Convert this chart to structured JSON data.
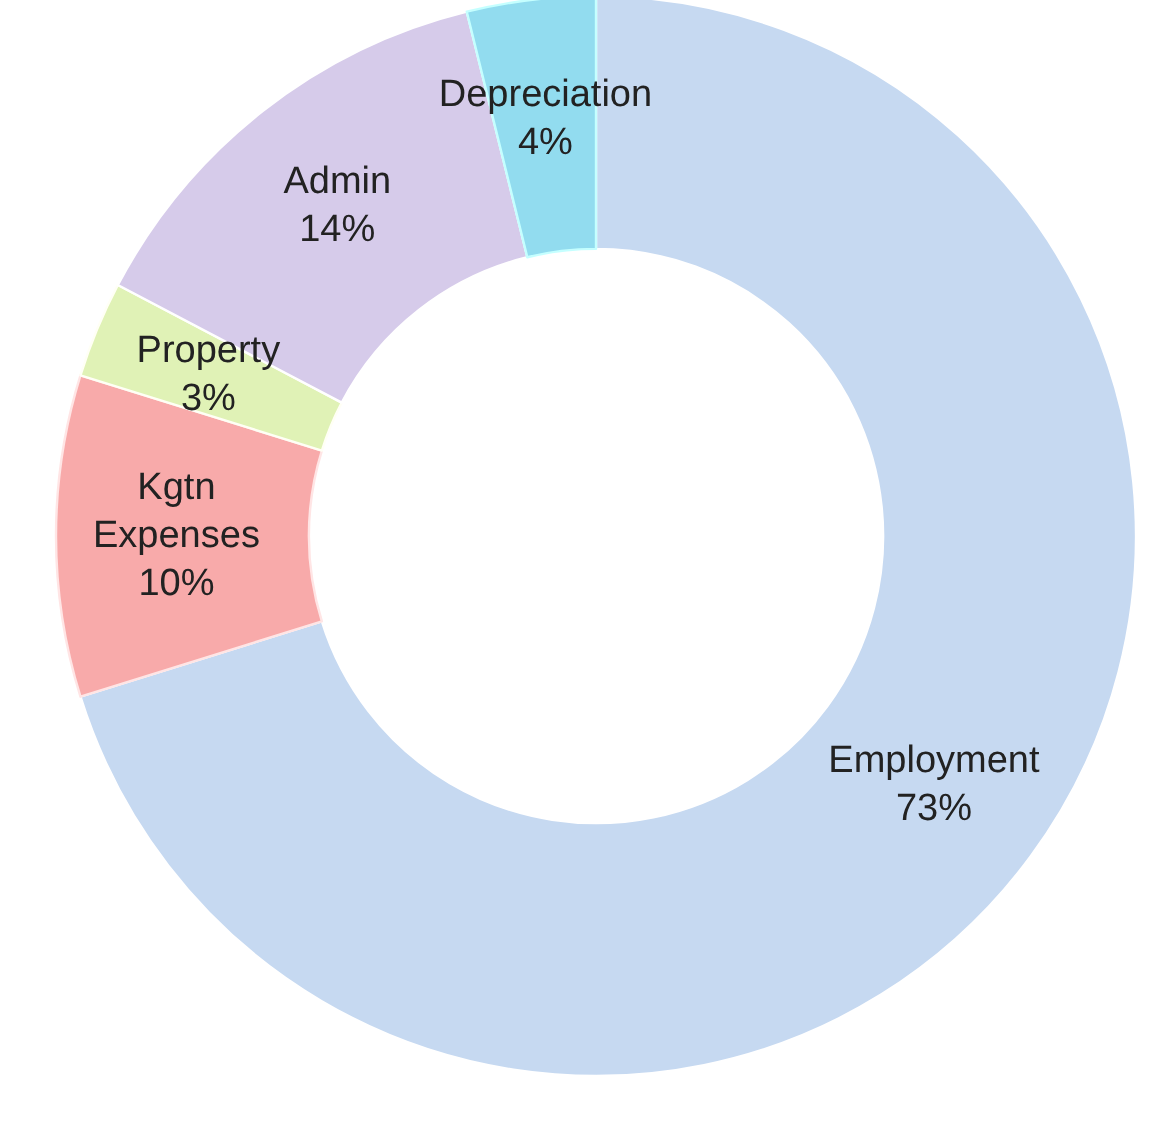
{
  "chart_data": {
    "type": "donut",
    "categories": [
      "Employment",
      "Kgtn Expenses",
      "Property",
      "Admin",
      "Depreciation"
    ],
    "values": [
      73,
      10,
      3,
      14,
      4
    ],
    "value_labels": [
      "73%",
      "10%",
      "3%",
      "14%",
      "4%"
    ],
    "colors": [
      "#c6d9f1",
      "#f8aaaa",
      "#e0f2b6",
      "#d6cbea",
      "#92dcef"
    ],
    "legend": false
  }
}
